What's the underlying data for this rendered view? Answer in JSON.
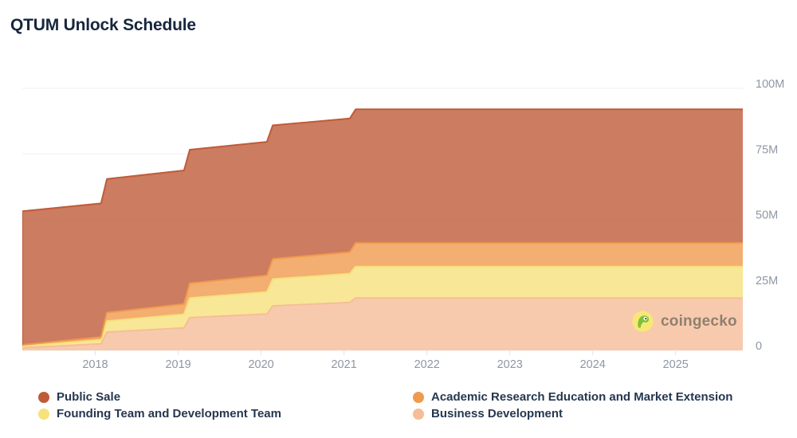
{
  "header": {
    "title": "QTUM Unlock Schedule"
  },
  "watermark": {
    "text": "coingecko"
  },
  "colors": {
    "background": "#FFFFFF",
    "title_text": "#16263D",
    "axis_label": "#8F97A4",
    "grid": "#EFF1F4",
    "tick_mark": "#DFE3E8",
    "legend_text": "#253750",
    "watermark_text": "#8A7D6D",
    "watermark_circle": "#F7E873",
    "watermark_gecko": "#7FBF3F"
  },
  "chart_data": {
    "type": "area",
    "stacked": true,
    "title": "QTUM Unlock Schedule",
    "xlabel": "",
    "ylabel": "",
    "unit": "M tokens",
    "xlim": [
      2017.12,
      2025.81
    ],
    "ylim": [
      0,
      100
    ],
    "grid": "horizontal",
    "legend_position": "bottom",
    "x": [
      2017.12,
      2018.07,
      2018.14,
      2019.07,
      2019.14,
      2020.07,
      2020.14,
      2021.07,
      2021.14,
      2025.81
    ],
    "series": [
      {
        "name": "Business Development",
        "color": "#F6BD98",
        "final_value_m": 20,
        "values": [
          1.0,
          2.5,
          7.0,
          8.6,
          12.5,
          13.9,
          17.0,
          18.3,
          20.0,
          20.0
        ]
      },
      {
        "name": "Founding Team and Development Team",
        "color": "#F6E17C",
        "final_value_m": 12,
        "values": [
          0.6,
          1.5,
          4.2,
          5.2,
          7.5,
          8.4,
          10.2,
          11.0,
          12.0,
          12.0
        ]
      },
      {
        "name": "Academic Research Education and Market Extension",
        "color": "#F09A4E",
        "final_value_m": 9,
        "values": [
          0.5,
          1.1,
          3.2,
          3.9,
          5.6,
          6.3,
          7.7,
          8.2,
          9.0,
          9.0
        ]
      },
      {
        "name": "Public Sale",
        "color": "#BF5B38",
        "final_value_m": 51,
        "values": [
          51,
          51,
          51,
          51,
          51,
          51,
          51,
          51,
          51,
          51
        ]
      }
    ],
    "x_ticks": {
      "values": [
        2018,
        2019,
        2020,
        2021,
        2022,
        2023,
        2024,
        2025
      ],
      "labels": [
        "2018",
        "2019",
        "2020",
        "2021",
        "2022",
        "2023",
        "2024",
        "2025"
      ]
    },
    "y_ticks": {
      "values": [
        0,
        25,
        50,
        75,
        100
      ],
      "labels": [
        "0",
        "25M",
        "50M",
        "75M",
        "100M"
      ]
    }
  }
}
